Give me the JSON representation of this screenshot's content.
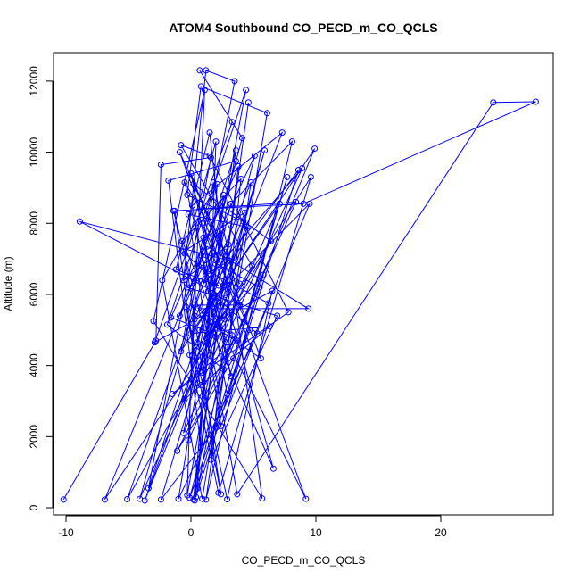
{
  "chart_data": {
    "type": "scatter",
    "title": "ATOM4 Southbound CO_PECD_m_CO_QCLS",
    "xlabel": "CO_PECD_m_CO_QCLS",
    "ylabel": "Altitude (m)",
    "xlim": [
      -11,
      29
    ],
    "ylim": [
      -200,
      12800
    ],
    "xticks": [
      -10,
      0,
      10,
      20
    ],
    "yticks": [
      0,
      2000,
      4000,
      6000,
      8000,
      10000,
      12000
    ],
    "series": [
      {
        "color": "#0000ff",
        "marker": "open-circle",
        "connected": true,
        "points": [
          [
            -10.2,
            230
          ],
          [
            -2.8,
            4700
          ],
          [
            -2.4,
            9650
          ],
          [
            1.6,
            9850
          ],
          [
            -3.4,
            550
          ],
          [
            3.0,
            7400
          ],
          [
            -0.6,
            6400
          ],
          [
            1.2,
            12300
          ],
          [
            3.5,
            12000
          ],
          [
            -0.2,
            5200
          ],
          [
            2.4,
            380
          ],
          [
            -0.5,
            7150
          ],
          [
            2.0,
            10300
          ],
          [
            1.4,
            4600
          ],
          [
            -4.1,
            250
          ],
          [
            3.6,
            9750
          ],
          [
            -1.8,
            9200
          ],
          [
            0.8,
            1700
          ],
          [
            4.6,
            11400
          ],
          [
            0.2,
            230
          ],
          [
            2.6,
            8800
          ],
          [
            -0.9,
            5400
          ],
          [
            5.1,
            9900
          ],
          [
            0.5,
            3500
          ],
          [
            -1.3,
            8350
          ],
          [
            8.4,
            8600
          ],
          [
            -0.2,
            1900
          ],
          [
            1.1,
            11750
          ],
          [
            -3.0,
            5250
          ],
          [
            5.7,
            260
          ],
          [
            3.1,
            6950
          ],
          [
            -8.9,
            8050
          ],
          [
            -0.4,
            6500
          ],
          [
            2.8,
            5900
          ],
          [
            6.6,
            1100
          ],
          [
            1.8,
            4900
          ],
          [
            -1.6,
            5350
          ],
          [
            3.8,
            9600
          ],
          [
            0.3,
            200
          ],
          [
            2.1,
            9100
          ],
          [
            -2.3,
            6400
          ],
          [
            0.9,
            250
          ],
          [
            6.1,
            11100
          ],
          [
            0.8,
            11850
          ],
          [
            -0.3,
            8800
          ],
          [
            4.2,
            8050
          ],
          [
            2.7,
            5300
          ],
          [
            -6.9,
            230
          ],
          [
            1.3,
            7350
          ],
          [
            9.4,
            5600
          ],
          [
            0.6,
            5600
          ],
          [
            3.7,
            4700
          ],
          [
            -1.5,
            3200
          ],
          [
            7.8,
            5500
          ],
          [
            1.5,
            9900
          ],
          [
            -0.8,
            10200
          ],
          [
            4.9,
            6800
          ],
          [
            0.4,
            4200
          ],
          [
            9.6,
            9300
          ],
          [
            2.2,
            420
          ],
          [
            -0.1,
            4300
          ],
          [
            5.8,
            6550
          ],
          [
            2.9,
            3200
          ],
          [
            0.1,
            8500
          ],
          [
            7.3,
            10550
          ],
          [
            1.9,
            5600
          ],
          [
            -2.9,
            4650
          ],
          [
            3.3,
            10850
          ],
          [
            0.7,
            12300
          ],
          [
            4.1,
            10400
          ],
          [
            1.0,
            6300
          ],
          [
            8.9,
            9550
          ],
          [
            -0.6,
            2100
          ],
          [
            2.5,
            7800
          ],
          [
            -5.1,
            240
          ],
          [
            6.4,
            7500
          ],
          [
            0.2,
            9100
          ],
          [
            3.9,
            6300
          ],
          [
            -0.9,
            10000
          ],
          [
            9.2,
            250
          ],
          [
            2.3,
            5100
          ],
          [
            0.8,
            7100
          ],
          [
            5.5,
            6200
          ],
          [
            -1.1,
            1600
          ],
          [
            3.4,
            4200
          ],
          [
            7.7,
            9300
          ],
          [
            0.5,
            540
          ],
          [
            1.7,
            6750
          ],
          [
            4.4,
            11750
          ],
          [
            -1.9,
            5150
          ],
          [
            2.6,
            3900
          ],
          [
            9.9,
            10100
          ],
          [
            0.0,
            4900
          ],
          [
            6.3,
            5100
          ],
          [
            -0.5,
            3050
          ],
          [
            3.2,
            8550
          ],
          [
            8.1,
            10300
          ],
          [
            1.2,
            230
          ],
          [
            4.8,
            9150
          ],
          [
            0.3,
            5300
          ],
          [
            9.5,
            8550
          ],
          [
            2.0,
            2250
          ],
          [
            -2.4,
            230
          ],
          [
            5.9,
            10050
          ],
          [
            0.9,
            3800
          ],
          [
            3.5,
            7050
          ],
          [
            -0.3,
            6200
          ],
          [
            6.9,
            5400
          ],
          [
            1.6,
            1350
          ],
          [
            4.0,
            9250
          ],
          [
            -0.7,
            7500
          ],
          [
            2.8,
            4650
          ],
          [
            0.4,
            300
          ],
          [
            8.6,
            9500
          ],
          [
            1.4,
            6100
          ],
          [
            5.3,
            4900
          ],
          [
            -1.0,
            250
          ],
          [
            3.6,
            10050
          ],
          [
            0.6,
            6800
          ],
          [
            6.2,
            5750
          ],
          [
            2.4,
            2300
          ],
          [
            -0.2,
            8250
          ],
          [
            4.5,
            7900
          ],
          [
            0.8,
            3450
          ],
          [
            7.1,
            8550
          ],
          [
            1.1,
            5500
          ],
          [
            3.7,
            380
          ],
          [
            24.2,
            11400
          ],
          [
            27.6,
            11420
          ],
          [
            9.0,
            8550
          ],
          [
            -1.4,
            8350
          ],
          [
            1.3,
            4650
          ],
          [
            3.0,
            6050
          ],
          [
            -3.7,
            200
          ],
          [
            2.1,
            5800
          ],
          [
            0.0,
            9400
          ],
          [
            5.6,
            4200
          ],
          [
            -0.4,
            5650
          ],
          [
            2.9,
            240
          ],
          [
            6.5,
            6100
          ],
          [
            0.7,
            5000
          ],
          [
            4.3,
            8300
          ],
          [
            -0.6,
            7200
          ],
          [
            2.2,
            6250
          ],
          [
            -1.2,
            6700
          ],
          [
            1.5,
            10550
          ],
          [
            3.3,
            4850
          ],
          [
            -0.1,
            280
          ],
          [
            4.7,
            5000
          ],
          [
            0.9,
            8000
          ],
          [
            2.6,
            6250
          ],
          [
            -0.8,
            4400
          ],
          [
            1.8,
            9150
          ],
          [
            3.9,
            5700
          ],
          [
            0.2,
            5700
          ],
          [
            -0.3,
            350
          ],
          [
            2.0,
            4800
          ],
          [
            1.0,
            7600
          ],
          [
            3.2,
            3700
          ],
          [
            -0.5,
            9150
          ],
          [
            2.7,
            7200
          ],
          [
            0.5,
            4650
          ]
        ]
      }
    ]
  }
}
